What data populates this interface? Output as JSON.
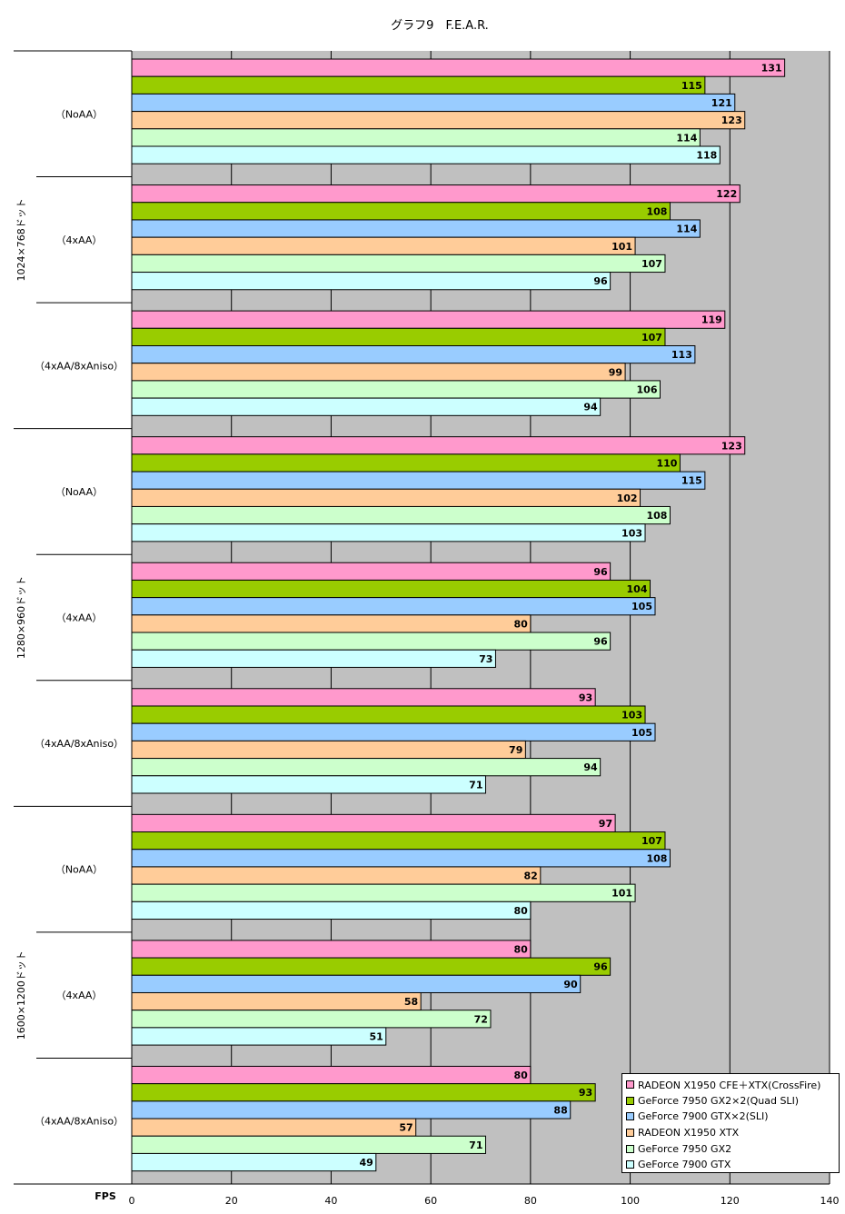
{
  "chart_data": {
    "type": "bar",
    "orientation": "horizontal",
    "title": "グラフ9　F.E.A.R.",
    "xlabel": "FPS",
    "xlim": [
      0,
      140
    ],
    "xticks": [
      0,
      20,
      40,
      60,
      80,
      100,
      120,
      140
    ],
    "grid": true,
    "legend_position": "bottom-right",
    "group_labels": [
      "1024×768ドット",
      "1280×960ドット",
      "1600×1200ドット"
    ],
    "sub_labels": [
      "（NoAA）",
      "（4xAA）",
      "（4xAA/8xAniso）"
    ],
    "series": [
      {
        "name": "RADEON X1950 CFE＋XTX(CrossFire)",
        "color": "#FF99CC",
        "values": [
          131,
          122,
          119,
          123,
          96,
          93,
          97,
          80,
          80
        ]
      },
      {
        "name": "GeForce 7950 GX2×2(Quad SLI)",
        "color": "#99CC00",
        "values": [
          115,
          108,
          107,
          110,
          104,
          103,
          107,
          96,
          93
        ]
      },
      {
        "name": "GeForce 7900 GTX×2(SLI)",
        "color": "#99CCFF",
        "values": [
          121,
          114,
          113,
          115,
          105,
          105,
          108,
          90,
          88
        ]
      },
      {
        "name": "RADEON X1950 XTX",
        "color": "#FFCC99",
        "values": [
          123,
          101,
          99,
          102,
          80,
          79,
          82,
          58,
          57
        ]
      },
      {
        "name": "GeForce 7950 GX2",
        "color": "#CCFFCC",
        "values": [
          114,
          107,
          106,
          108,
          96,
          94,
          101,
          72,
          71
        ]
      },
      {
        "name": "GeForce 7900 GTX",
        "color": "#CCFFFF",
        "values": [
          118,
          96,
          94,
          103,
          73,
          71,
          80,
          51,
          49
        ]
      }
    ],
    "plot_background": "#C0C0C0"
  }
}
